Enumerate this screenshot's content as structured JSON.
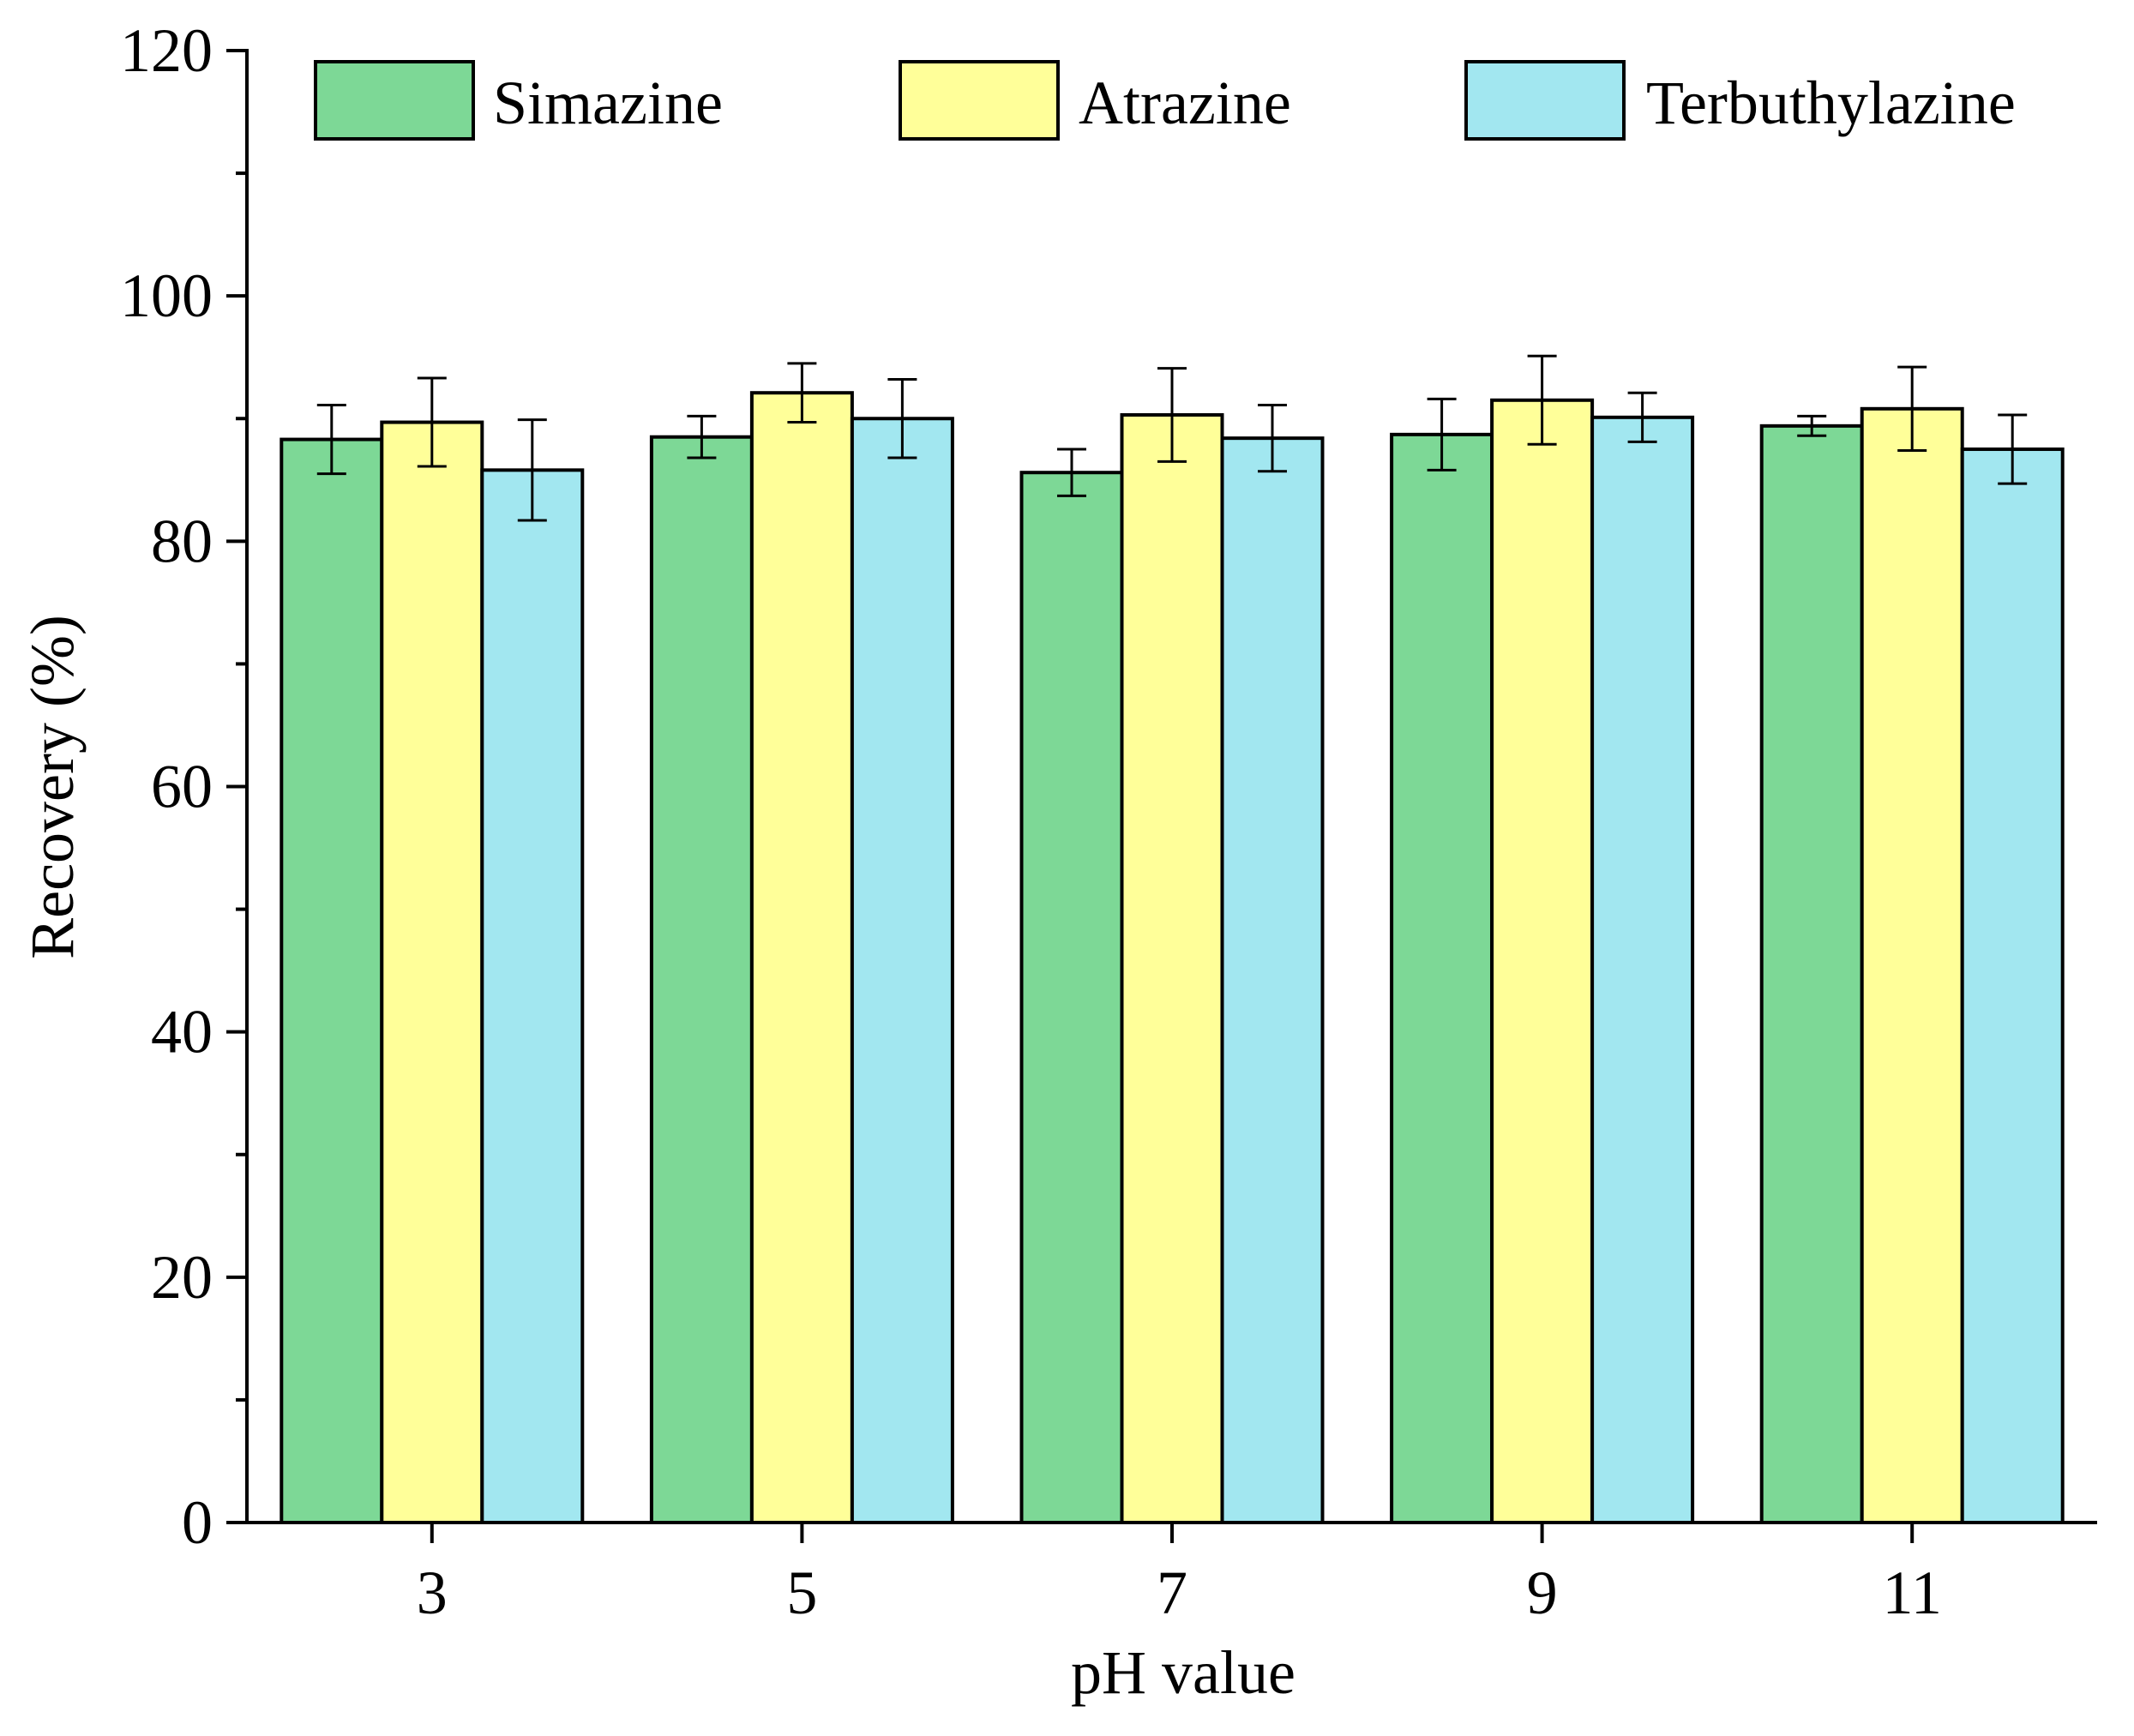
{
  "chart_data": {
    "type": "bar",
    "title": "",
    "xlabel": "pH value",
    "ylabel": "Recovery (%)",
    "categories": [
      "3",
      "5",
      "7",
      "9",
      "11"
    ],
    "ylim": [
      0,
      120
    ],
    "yticks": [
      "0",
      "20",
      "40",
      "60",
      "80",
      "100",
      "120"
    ],
    "legend_position": "top",
    "grid": false,
    "series": [
      {
        "name": "Simazine",
        "color": "#7dd896",
        "values": [
          88.3,
          88.5,
          85.6,
          88.7,
          89.4
        ],
        "errors": [
          2.8,
          1.7,
          1.9,
          2.9,
          0.8
        ]
      },
      {
        "name": "Atrazine",
        "color": "#ffff99",
        "values": [
          89.7,
          92.1,
          90.3,
          91.5,
          90.8
        ],
        "errors": [
          3.6,
          2.4,
          3.8,
          3.6,
          3.4
        ]
      },
      {
        "name": "Terbuthylazine",
        "color": "#a2e7f0",
        "values": [
          85.8,
          90.0,
          88.4,
          90.1,
          87.5
        ],
        "errors": [
          4.1,
          3.2,
          2.7,
          2.0,
          2.8
        ]
      }
    ]
  }
}
